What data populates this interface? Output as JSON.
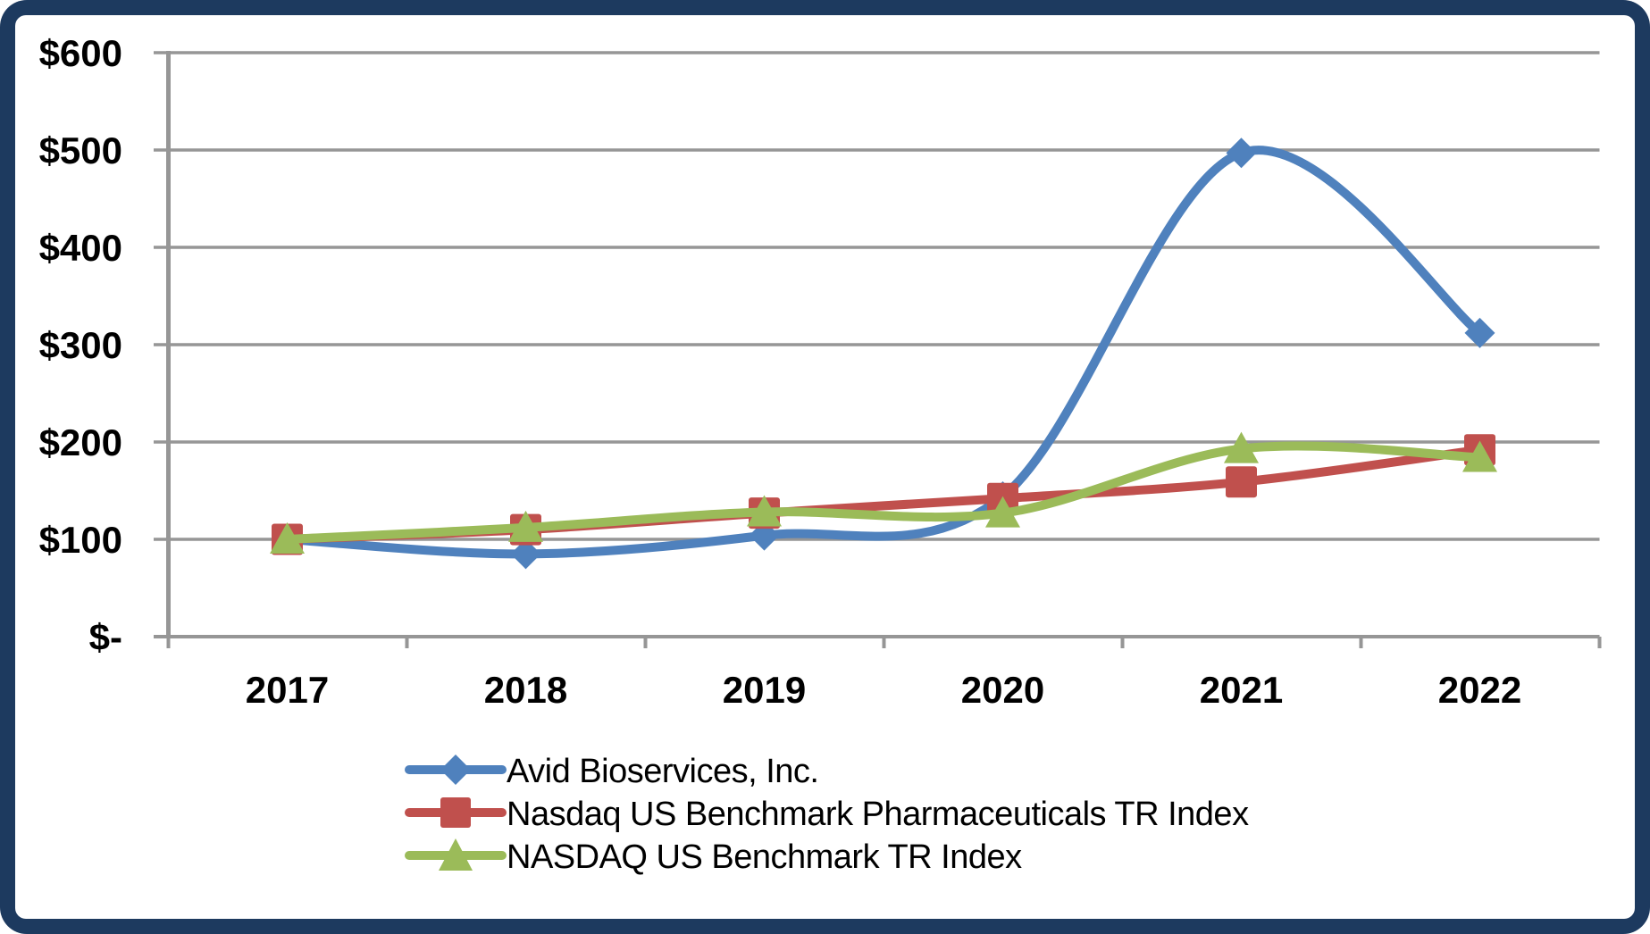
{
  "frame": {
    "border_color": "#1D3A5F",
    "background_color": "#FFFFFF",
    "gridline_color": "#969696",
    "text_color": "#000000"
  },
  "chart_data": {
    "type": "line",
    "title": "",
    "xlabel": "",
    "ylabel": "",
    "x_categories": [
      "2017",
      "2018",
      "2019",
      "2020",
      "2021",
      "2022"
    ],
    "y_tick_labels": [
      "$600",
      "$500",
      "$400",
      "$300",
      "$200",
      "$100",
      "$-"
    ],
    "y_tick_values": [
      600,
      500,
      400,
      300,
      200,
      100,
      0
    ],
    "ylim": [
      0,
      600
    ],
    "grid": "horizontal",
    "smooth_lines": true,
    "legend_position": "bottom",
    "series": [
      {
        "name": "Avid Bioservices, Inc.",
        "color": "#4F81BD",
        "marker": "diamond",
        "values": [
          100,
          85,
          104,
          144,
          497,
          312
        ]
      },
      {
        "name": "Nasdaq US Benchmark Pharmaceuticals TR Index",
        "color": "#C0504D",
        "marker": "square",
        "values": [
          100,
          110,
          127,
          142,
          159,
          192
        ]
      },
      {
        "name": "NASDAQ US Benchmark TR Index",
        "color": "#9BBB59",
        "marker": "triangle",
        "values": [
          100,
          112,
          128,
          127,
          193,
          184
        ]
      }
    ]
  }
}
